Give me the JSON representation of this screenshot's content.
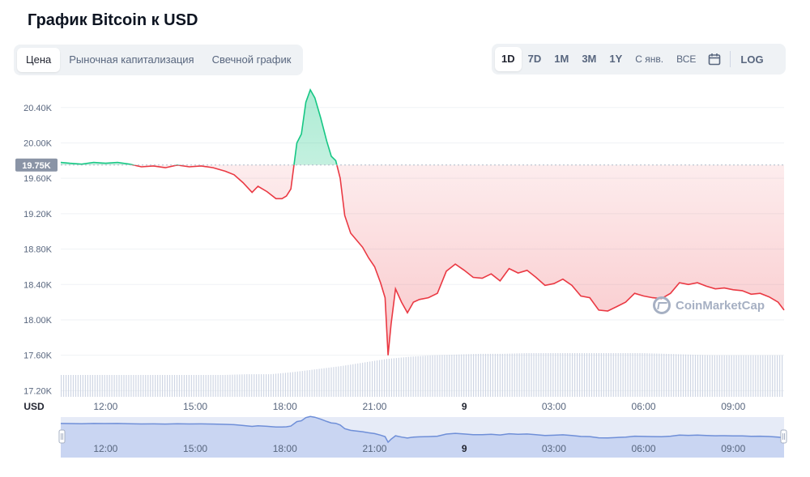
{
  "page": {
    "title": "График Bitcoin к USD"
  },
  "tabs": [
    {
      "label": "Цена",
      "active": true
    },
    {
      "label": "Рыночная капитализация",
      "active": false
    },
    {
      "label": "Свечной график",
      "active": false
    }
  ],
  "ranges": {
    "items": [
      {
        "label": "1D",
        "active": true
      },
      {
        "label": "7D",
        "active": false
      },
      {
        "label": "1M",
        "active": false
      },
      {
        "label": "3M",
        "active": false
      },
      {
        "label": "1Y",
        "active": false
      },
      {
        "label": "С янв.",
        "active": false
      },
      {
        "label": "ВСЕ",
        "active": false
      }
    ],
    "calendar_icon": "calendar-icon",
    "log_label": "LOG"
  },
  "watermark": {
    "text": "CoinMarketCap"
  },
  "colors": {
    "up": "#16c784",
    "down": "#ea3943",
    "navigator": "#6f8fd8",
    "baseline": "#b0b8c8"
  },
  "chart_data": {
    "type": "line",
    "currency_label": "USD",
    "baseline_value": 19750,
    "baseline_label": "19.75K",
    "yticks": [
      "20.40K",
      "20.00K",
      "19.60K",
      "19.20K",
      "18.80K",
      "18.40K",
      "18.00K",
      "17.60K",
      "17.20K"
    ],
    "ytick_values": [
      20400,
      20000,
      19600,
      19200,
      18800,
      18400,
      18000,
      17600,
      17200
    ],
    "ylim": [
      17130,
      20700
    ],
    "xlim": [
      10.5,
      34.7
    ],
    "xticks": [
      {
        "label": "12:00",
        "x": 12,
        "bold": false
      },
      {
        "label": "15:00",
        "x": 15,
        "bold": false
      },
      {
        "label": "18:00",
        "x": 18,
        "bold": false
      },
      {
        "label": "21:00",
        "x": 21,
        "bold": false
      },
      {
        "label": "9",
        "x": 24,
        "bold": true
      },
      {
        "label": "03:00",
        "x": 27,
        "bold": false
      },
      {
        "label": "06:00",
        "x": 30,
        "bold": false
      },
      {
        "label": "09:00",
        "x": 33,
        "bold": false
      }
    ],
    "series": [
      {
        "x": [
          10.5,
          10.8,
          11.2,
          11.6,
          12.0,
          12.4,
          12.8,
          13.2,
          13.6,
          14.0,
          14.4,
          14.8,
          15.2,
          15.6,
          16.0,
          16.3,
          16.6,
          16.9,
          17.1,
          17.4,
          17.7,
          17.9,
          18.05,
          18.2,
          18.4,
          18.55,
          18.7,
          18.85,
          19.0,
          19.2,
          19.4,
          19.55,
          19.7,
          19.85,
          20.0,
          20.2,
          20.4,
          20.6,
          20.8,
          21.0,
          21.2,
          21.35,
          21.45,
          21.55,
          21.7,
          21.9,
          22.1,
          22.3,
          22.5,
          22.8,
          23.1,
          23.4,
          23.7,
          24.0,
          24.3,
          24.6,
          24.9,
          25.2,
          25.5,
          25.8,
          26.1,
          26.4,
          26.7,
          27.0,
          27.3,
          27.6,
          27.9,
          28.2,
          28.5,
          28.8,
          29.1,
          29.4,
          29.7,
          30.0,
          30.3,
          30.6,
          30.9,
          31.2,
          31.5,
          31.8,
          32.1,
          32.4,
          32.7,
          33.0,
          33.3,
          33.6,
          33.9,
          34.2,
          34.5,
          34.7
        ],
        "y": [
          19780,
          19770,
          19760,
          19780,
          19770,
          19780,
          19760,
          19730,
          19740,
          19720,
          19750,
          19730,
          19740,
          19720,
          19680,
          19640,
          19550,
          19440,
          19510,
          19450,
          19370,
          19370,
          19400,
          19480,
          20000,
          20100,
          20460,
          20600,
          20510,
          20280,
          20020,
          19850,
          19800,
          19600,
          19180,
          18980,
          18900,
          18820,
          18700,
          18600,
          18420,
          18250,
          17600,
          17950,
          18350,
          18200,
          18080,
          18200,
          18230,
          18250,
          18300,
          18550,
          18630,
          18560,
          18480,
          18470,
          18520,
          18440,
          18580,
          18530,
          18560,
          18480,
          18390,
          18410,
          18460,
          18390,
          18270,
          18250,
          18110,
          18100,
          18150,
          18200,
          18300,
          18270,
          18250,
          18240,
          18300,
          18420,
          18400,
          18420,
          18380,
          18350,
          18360,
          18340,
          18330,
          18290,
          18300,
          18260,
          18200,
          18110
        ]
      }
    ],
    "volume_note": "relative volume bars",
    "volume": [
      0.3,
      0.3,
      0.3,
      0.3,
      0.3,
      0.3,
      0.3,
      0.3,
      0.31,
      0.31,
      0.34,
      0.38,
      0.42,
      0.47,
      0.52,
      0.55,
      0.57,
      0.58,
      0.59,
      0.59,
      0.6,
      0.6,
      0.6,
      0.6,
      0.6,
      0.6,
      0.59,
      0.58,
      0.57,
      0.57,
      0.57,
      0.57
    ]
  }
}
